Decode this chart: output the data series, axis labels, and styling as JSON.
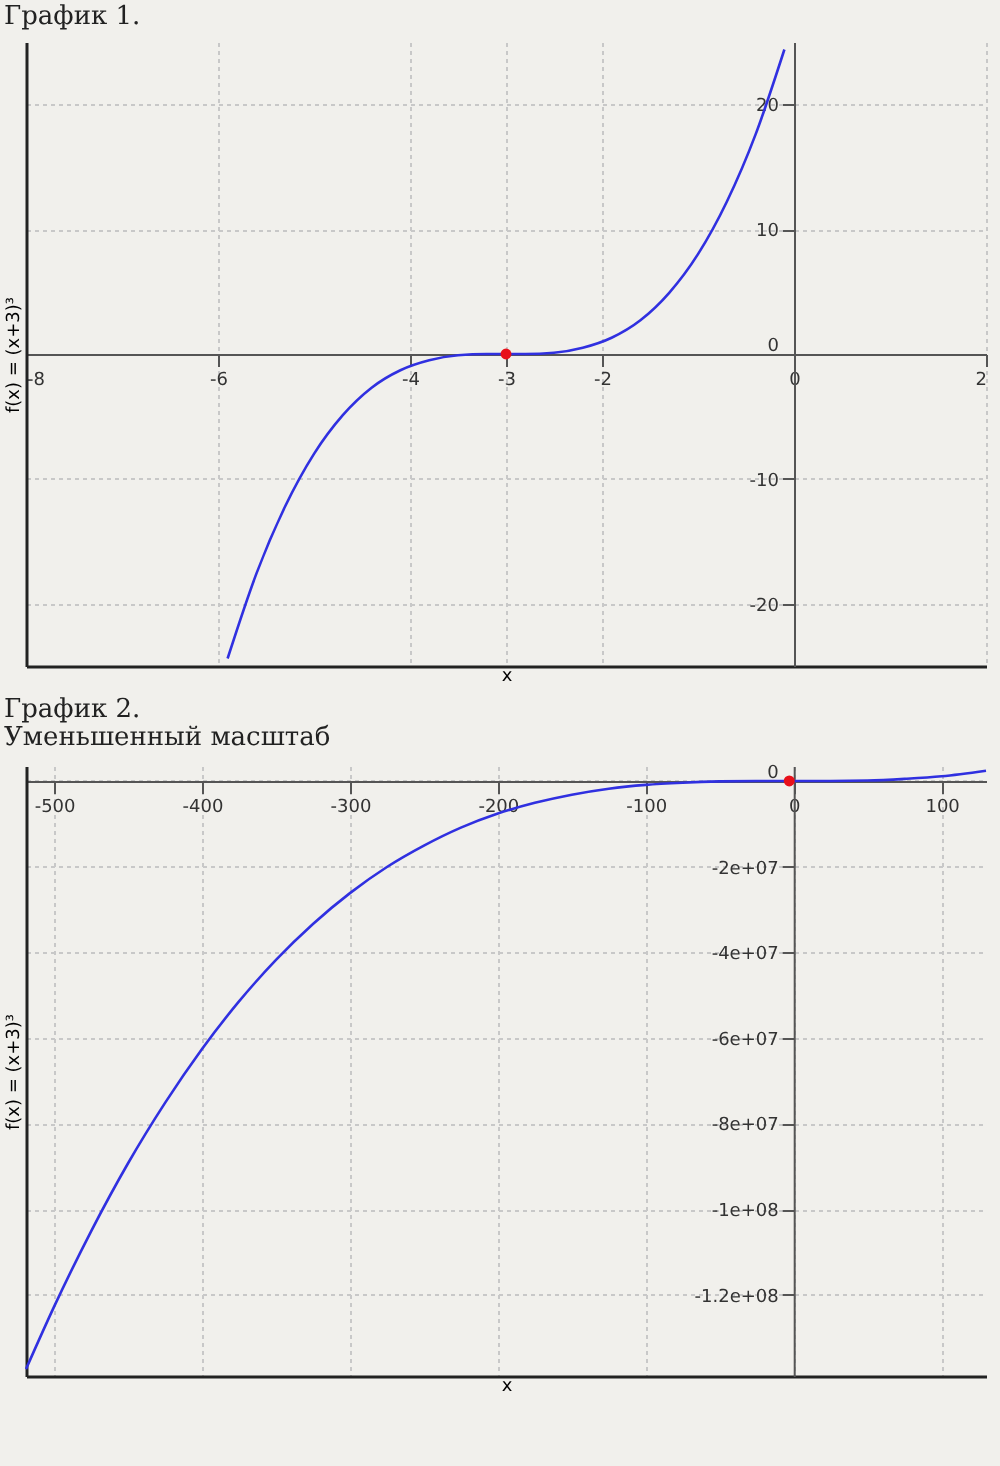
{
  "chart_data": [
    {
      "type": "line",
      "title": "График 1.",
      "xlabel": "x",
      "ylabel": "f(x) = (x+3)³",
      "xlim": [
        -8,
        2
      ],
      "ylim": [
        -25,
        25
      ],
      "xticks": [
        -8,
        -6,
        -4,
        -3,
        -2,
        0,
        2
      ],
      "yticks": [
        -20,
        -10,
        0,
        10,
        20
      ],
      "grid": true,
      "series": [
        {
          "type": "line",
          "color": "#3030e0",
          "x": [
            -5.9,
            -5.6,
            -5.3,
            -5,
            -4.7,
            -4.4,
            -4.1,
            -3.8,
            -3.5,
            -3.2,
            -3,
            -2.8,
            -2.5,
            -2.2,
            -1.9,
            -1.6,
            -1.3,
            -1,
            -0.7,
            -0.4,
            -0.1
          ],
          "values": [
            -24.4,
            -17.6,
            -12.2,
            -8,
            -4.9,
            -2.7,
            -1.3,
            -0.5,
            -0.1,
            0,
            0,
            0,
            0.1,
            0.5,
            1.3,
            2.7,
            4.9,
            8,
            12.2,
            17.6,
            24.4
          ]
        },
        {
          "type": "scatter",
          "color": "#e8101a",
          "marker": "circle",
          "x": [
            -3
          ],
          "values": [
            0
          ]
        }
      ]
    },
    {
      "type": "line",
      "title": "График 2.",
      "subtitle": "Уменьшенный масштаб",
      "xlabel": "x",
      "ylabel": "f(x) = (x+3)³",
      "xlim": [
        -519,
        130
      ],
      "ylim": [
        -139000000,
        3500000
      ],
      "xticks": [
        -500,
        -400,
        -300,
        -200,
        -100,
        0,
        100
      ],
      "yticks": [
        {
          "value": -120000000,
          "label": "-1.2e+08"
        },
        {
          "value": -100000000,
          "label": "-1e+08"
        },
        {
          "value": -80000000,
          "label": "-8e+07"
        },
        {
          "value": -60000000,
          "label": "-6e+07"
        },
        {
          "value": -40000000,
          "label": "-4e+07"
        },
        {
          "value": -20000000,
          "label": "-2e+07"
        },
        0
      ],
      "grid": true,
      "series": [
        {
          "type": "line",
          "color": "#3030e0",
          "x": [
            -519,
            -500,
            -475,
            -450,
            -425,
            -400,
            -375,
            -350,
            -325,
            -300,
            -275,
            -250,
            -225,
            -200,
            -175,
            -150,
            -125,
            -100,
            -75,
            -50,
            -25,
            0,
            25,
            50,
            75,
            100,
            130
          ],
          "values": [
            -137400000,
            -122800000,
            -105200000,
            -89300000,
            -75200000,
            -62600000,
            -51500000,
            -41800000,
            -33400000,
            -26200000,
            -20100000,
            -15100000,
            -10900000,
            -7600000,
            -5100000,
            -3200000,
            -1800000,
            -900000,
            -400000,
            -100000,
            0,
            0,
            0,
            100000,
            500000,
            1100000,
            2400000
          ]
        },
        {
          "type": "scatter",
          "color": "#e8101a",
          "marker": "circle",
          "x": [
            -3
          ],
          "values": [
            0
          ]
        }
      ]
    }
  ]
}
